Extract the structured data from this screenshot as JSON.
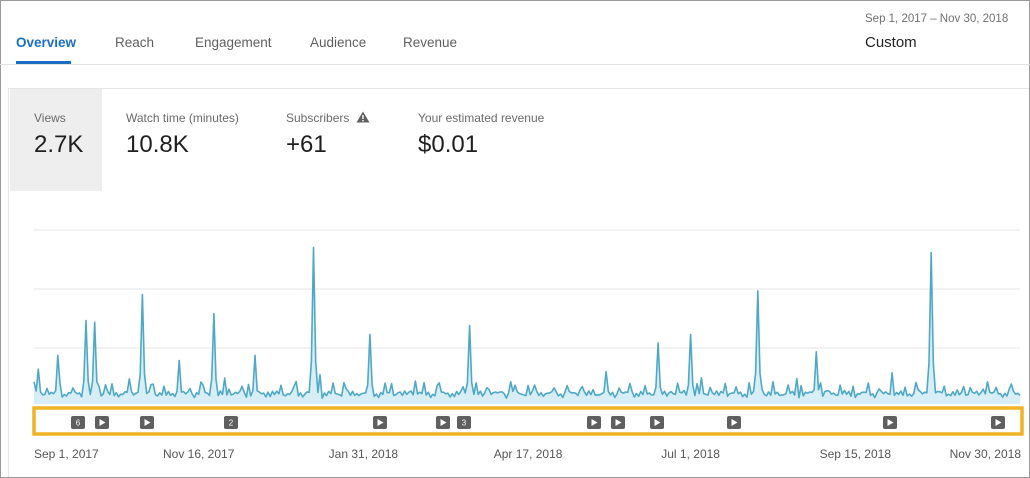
{
  "tabs": [
    {
      "label": "Overview",
      "active": true
    },
    {
      "label": "Reach",
      "active": false
    },
    {
      "label": "Engagement",
      "active": false
    },
    {
      "label": "Audience",
      "active": false
    },
    {
      "label": "Revenue",
      "active": false
    }
  ],
  "date_range": {
    "range_text": "Sep 1, 2017 – Nov 30, 2018",
    "preset": "Custom"
  },
  "metrics": [
    {
      "label": "Views",
      "value": "2.7K",
      "selected": true
    },
    {
      "label": "Watch time (minutes)",
      "value": "10.8K",
      "selected": false
    },
    {
      "label": "Subscribers",
      "value": "+61",
      "selected": false,
      "icon": "warning-icon"
    },
    {
      "label": "Your estimated revenue",
      "value": "$0.01",
      "selected": false
    }
  ],
  "colors": {
    "accent": "#1a6fc4",
    "line": "#4fa8c6",
    "fill": "#d8eef6",
    "highlight": "#f0b323",
    "marker": "#5f5f5f"
  },
  "chart_data": {
    "type": "area",
    "x_start": "Sep 1, 2017",
    "x_end": "Nov 30, 2018",
    "x_tick_labels": [
      "Sep 1, 2017",
      "Nov 16, 2017",
      "Jan 31, 2018",
      "Apr 17, 2018",
      "Jul 1, 2018",
      "Sep 15, 2018",
      "Nov 30, 2018"
    ],
    "grid": true,
    "peaks": [
      {
        "date": "Sep 3, 2017",
        "views": 20
      },
      {
        "date": "Sep 12, 2017",
        "views": 28
      },
      {
        "date": "Sep 25, 2017",
        "views": 48
      },
      {
        "date": "Sep 29, 2017",
        "views": 47
      },
      {
        "date": "Oct 21, 2017",
        "views": 63
      },
      {
        "date": "Nov 7, 2017",
        "views": 25
      },
      {
        "date": "Nov 23, 2017",
        "views": 52
      },
      {
        "date": "Dec 12, 2017",
        "views": 28
      },
      {
        "date": "Jan 8, 2018",
        "views": 90
      },
      {
        "date": "Feb 3, 2018",
        "views": 40
      },
      {
        "date": "Mar 21, 2018",
        "views": 45
      },
      {
        "date": "Jun 16, 2018",
        "views": 35
      },
      {
        "date": "Jul 1, 2018",
        "views": 40
      },
      {
        "date": "Aug 1, 2018",
        "views": 65
      },
      {
        "date": "Aug 28, 2018",
        "views": 30
      },
      {
        "date": "Oct 20, 2018",
        "views": 87
      }
    ],
    "markers": [
      {
        "type": "group",
        "label": "6"
      },
      {
        "type": "video",
        "label": ""
      },
      {
        "type": "video",
        "label": ""
      },
      {
        "type": "group",
        "label": "2"
      },
      {
        "type": "video",
        "label": ""
      },
      {
        "type": "video",
        "label": ""
      },
      {
        "type": "group",
        "label": "3"
      },
      {
        "type": "video",
        "label": ""
      },
      {
        "type": "video",
        "label": ""
      },
      {
        "type": "video",
        "label": ""
      },
      {
        "type": "video",
        "label": ""
      },
      {
        "type": "video",
        "label": ""
      },
      {
        "type": "video",
        "label": ""
      }
    ]
  }
}
